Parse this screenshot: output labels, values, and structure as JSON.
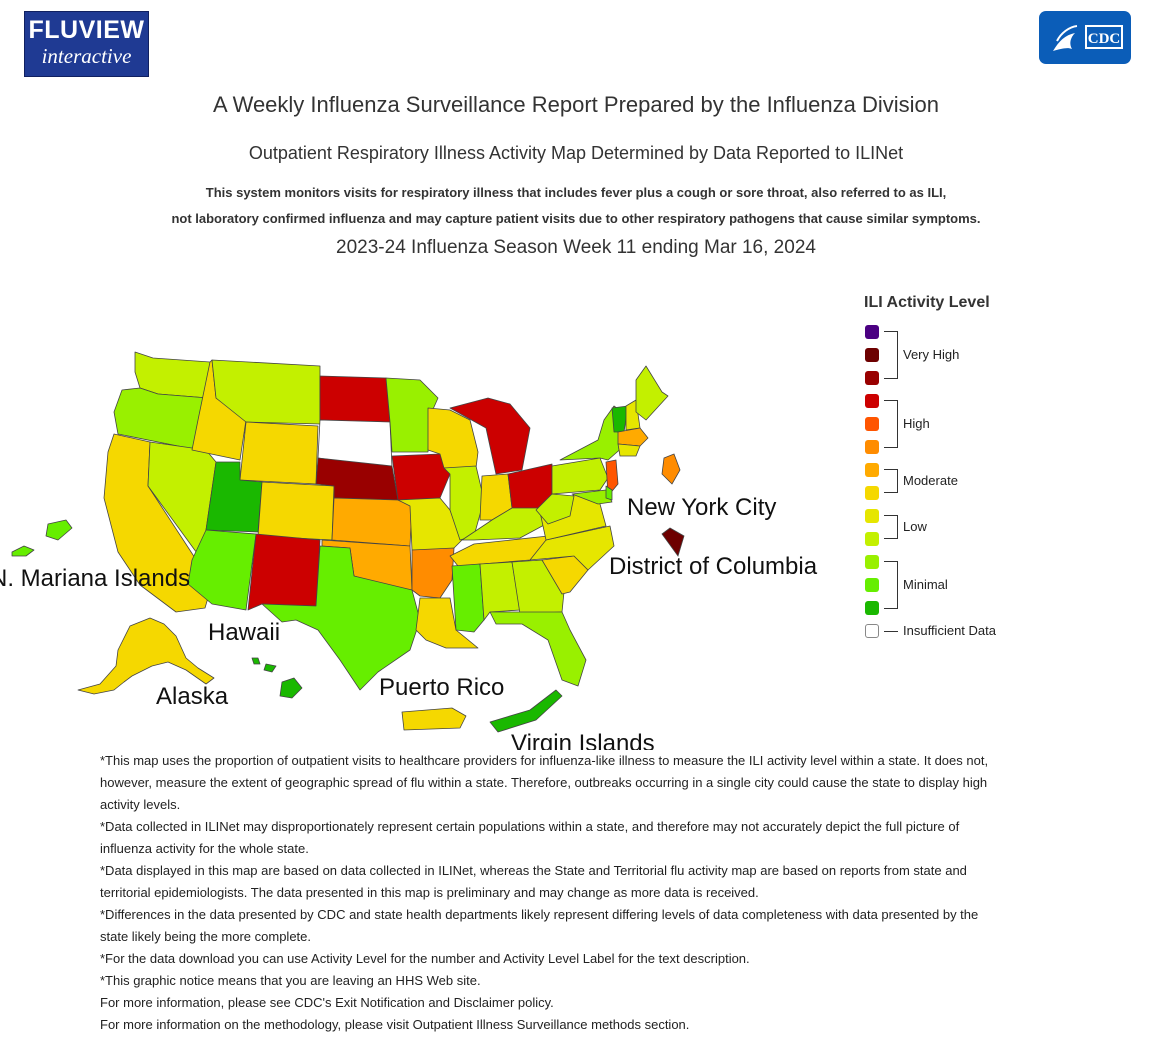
{
  "logos": {
    "fluview_line1": "FLUVIEW",
    "fluview_line2": "interactive",
    "cdc": "CDC"
  },
  "header": {
    "title": "A Weekly Influenza Surveillance Report Prepared by the Influenza Division",
    "subtitle": "Outpatient Respiratory Illness Activity Map Determined by Data Reported to ILINet",
    "description_line1": "This system monitors visits for respiratory illness that includes fever plus a cough or sore throat, also referred to as ILI,",
    "description_line2": "not laboratory confirmed influenza and may capture patient visits due to other respiratory pathogens that cause similar symptoms.",
    "season": "2023-24 Influenza Season Week 11 ending Mar 16, 2024"
  },
  "map_labels": {
    "nyc": "New York City",
    "dc": "District of Columbia",
    "nmariana": "N. Mariana Islands",
    "hawaii": "Hawaii",
    "alaska": "Alaska",
    "puerto_rico": "Puerto Rico",
    "virgin_islands": "Virgin Islands"
  },
  "legend": {
    "title": "ILI Activity Level",
    "swatches": [
      "#4b0082",
      "#6d0000",
      "#990000",
      "#cc0000",
      "#ff5500",
      "#ff8c00",
      "#ffaa00",
      "#f5d800",
      "#e6e600",
      "#c3f000",
      "#99f000",
      "#66ee00",
      "#1ab800",
      "#ffffff"
    ],
    "groups": {
      "very_high": "Very High",
      "high": "High",
      "moderate": "Moderate",
      "low": "Low",
      "minimal": "Minimal",
      "insufficient": "Insufficient Data"
    }
  },
  "map_colors": {
    "10": "#6d0000",
    "9": "#990000",
    "8": "#cc0000",
    "7": "#ff5500",
    "6": "#ff8c00",
    "5": "#ffaa00",
    "4": "#f5d800",
    "3": "#e6e600",
    "2": "#c3f000",
    "1": "#99f000",
    "minimal2": "#66ee00",
    "minimal3": "#1ab800",
    "insufficient": "#ffffff"
  },
  "notes": [
    "*This map uses the proportion of outpatient visits to healthcare providers for influenza-like illness to measure the ILI activity level within a state. It does not, however, measure the extent of geographic spread of flu within a state. Therefore, outbreaks occurring in a single city could cause the state to display high activity levels.",
    "*Data collected in ILINet may disproportionately represent certain populations within a state, and therefore may not accurately depict the full picture of influenza activity for the whole state.",
    "*Data displayed in this map are based on data collected in ILINet, whereas the State and Territorial flu activity map are based on reports from state and territorial epidemiologists. The data presented in this map is preliminary and may change as more data is received.",
    "*Differences in the data presented by CDC and state health departments likely represent differing levels of data completeness with data presented by the state likely being the more complete.",
    "*For the data download you can use Activity Level for the number and Activity Level Label for the text description.",
    "*This graphic notice means that you are leaving an HHS Web site.",
    "For more information, please see CDC's Exit Notification and Disclaimer policy.",
    "For more information on the methodology, please visit Outpatient Illness Surveillance methods section."
  ]
}
